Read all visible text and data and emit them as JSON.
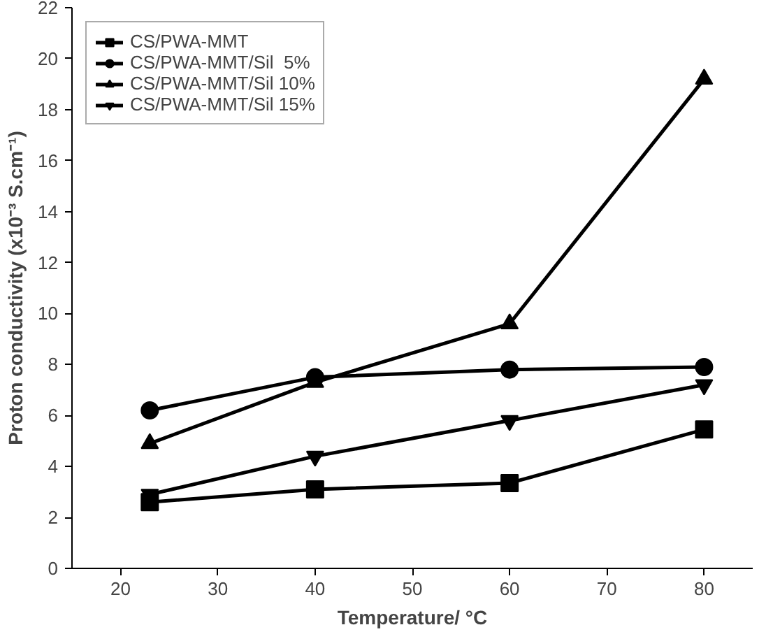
{
  "chart_data": {
    "type": "line",
    "xlabel": "Temperature/ °C",
    "ylabel": "Proton conductivity (x10⁻³ S.cm⁻¹)",
    "x": [
      23,
      40,
      60,
      80
    ],
    "series": [
      {
        "name": "CS/PWA-MMT",
        "color": "#000000",
        "marker": "square",
        "values": [
          2.6,
          3.1,
          3.35,
          5.45
        ]
      },
      {
        "name": "CS/PWA-MMT/Sil  5%",
        "color": "#000000",
        "marker": "circle",
        "values": [
          6.2,
          7.5,
          7.8,
          7.9
        ]
      },
      {
        "name": "CS/PWA-MMT/Sil 10%",
        "color": "#000000",
        "marker": "triangle",
        "values": [
          4.9,
          7.3,
          9.6,
          19.2
        ]
      },
      {
        "name": "CS/PWA-MMT/Sil 15%",
        "color": "#000000",
        "marker": "triangle_down",
        "values": [
          2.9,
          4.4,
          5.8,
          7.2
        ]
      }
    ],
    "xlim": [
      15,
      85
    ],
    "xticks": [
      20,
      30,
      40,
      50,
      60,
      70,
      80
    ],
    "ylim": [
      0,
      22
    ],
    "yticks": [
      0,
      2,
      4,
      6,
      8,
      10,
      12,
      14,
      16,
      18,
      20,
      22
    ],
    "grid": false,
    "legend": "top left",
    "line_style": "solid"
  }
}
